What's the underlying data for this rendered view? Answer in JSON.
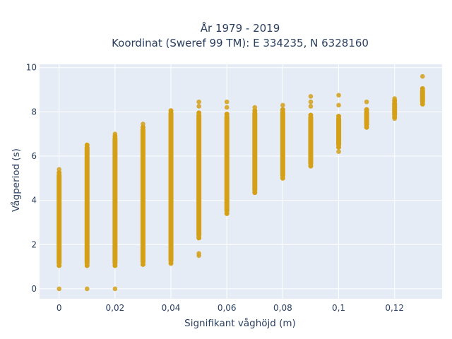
{
  "chart_data": {
    "type": "scatter",
    "title_line1": "År 1979 - 2019",
    "title_line2": "Koordinat (Sweref 99 TM): E 334235, N 6328160",
    "xlabel": "Signifikant våghöjd (m)",
    "ylabel": "Vågperiod (s)",
    "xlim": [
      -0.007,
      0.137
    ],
    "ylim": [
      -0.45,
      10.15
    ],
    "x_ticks": [
      0,
      0.02,
      0.04,
      0.06,
      0.08,
      0.1,
      0.12
    ],
    "x_tick_labels": [
      "0",
      "0,02",
      "0,04",
      "0,06",
      "0,08",
      "0,1",
      "0,12"
    ],
    "y_ticks": [
      0,
      2,
      4,
      6,
      8,
      10
    ],
    "y_tick_labels": [
      "0",
      "2",
      "4",
      "6",
      "8",
      "10"
    ],
    "grid": true,
    "legend": "none",
    "colors": {
      "plot_bg": "#e5ecf6",
      "grid": "#ffffff",
      "marker": "#d4a017",
      "text": "#2a3f5f"
    },
    "columns": [
      {
        "x": 0,
        "y_min": 1.05,
        "y_max": 5.25,
        "extra": [
          0.0,
          5.4
        ]
      },
      {
        "x": 0.01,
        "y_min": 1.05,
        "y_max": 6.5,
        "extra": [
          0.0
        ]
      },
      {
        "x": 0.02,
        "y_min": 1.05,
        "y_max": 6.9,
        "extra": [
          0.0,
          7.0
        ]
      },
      {
        "x": 0.03,
        "y_min": 1.1,
        "y_max": 7.3,
        "extra": [
          7.45
        ]
      },
      {
        "x": 0.04,
        "y_min": 1.15,
        "y_max": 8.05,
        "extra": []
      },
      {
        "x": 0.05,
        "y_min": 2.3,
        "y_max": 7.95,
        "extra": [
          1.5,
          1.6,
          8.25,
          8.45
        ]
      },
      {
        "x": 0.06,
        "y_min": 3.4,
        "y_max": 7.9,
        "extra": [
          8.2,
          8.45
        ]
      },
      {
        "x": 0.07,
        "y_min": 4.35,
        "y_max": 8.05,
        "extra": [
          8.2
        ]
      },
      {
        "x": 0.08,
        "y_min": 5.0,
        "y_max": 8.1,
        "extra": [
          8.3
        ]
      },
      {
        "x": 0.09,
        "y_min": 5.55,
        "y_max": 7.85,
        "extra": [
          8.25,
          8.45,
          8.7
        ]
      },
      {
        "x": 0.1,
        "y_min": 6.4,
        "y_max": 7.8,
        "extra": [
          6.2,
          8.3,
          8.75
        ]
      },
      {
        "x": 0.11,
        "y_min": 7.3,
        "y_max": 8.1,
        "extra": [
          8.45
        ]
      },
      {
        "x": 0.12,
        "y_min": 7.75,
        "y_max": 8.5,
        "extra": [
          7.7,
          8.6
        ]
      },
      {
        "x": 0.13,
        "y_min": 8.35,
        "y_max": 9.05,
        "extra": [
          9.6
        ]
      }
    ]
  }
}
